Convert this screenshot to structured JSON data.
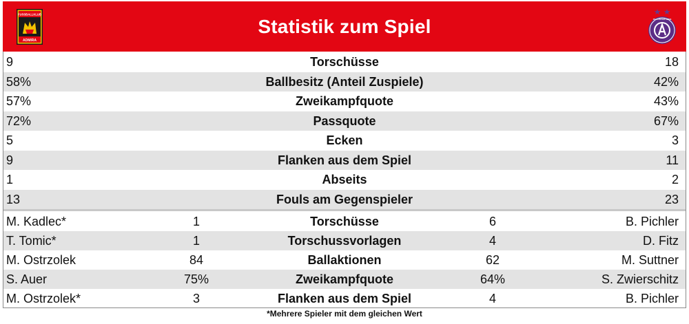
{
  "header": {
    "title": "Statistik zum Spiel",
    "home_logo": {
      "icon": "admira-crest-icon",
      "text_top": "FUSSBALLKLUB",
      "text_bottom": "ADMIRA"
    },
    "away_logo": {
      "icon": "austria-wien-crest-icon",
      "text": "FK AUSTRIA WIEN"
    },
    "accent_color": "#e30613"
  },
  "team_stats": [
    {
      "home": "9",
      "label": "Torschüsse",
      "away": "18"
    },
    {
      "home": "58%",
      "label": "Ballbesitz (Anteil Zuspiele)",
      "away": "42%"
    },
    {
      "home": "57%",
      "label": "Zweikampfquote",
      "away": "43%"
    },
    {
      "home": "72%",
      "label": "Passquote",
      "away": "67%"
    },
    {
      "home": "5",
      "label": "Ecken",
      "away": "3"
    },
    {
      "home": "9",
      "label": "Flanken aus dem Spiel",
      "away": "11"
    },
    {
      "home": "1",
      "label": "Abseits",
      "away": "2"
    },
    {
      "home": "13",
      "label": "Fouls am Gegenspieler",
      "away": "23"
    }
  ],
  "player_stats": [
    {
      "home_player": "M. Kadlec*",
      "home_value": "1",
      "label": "Torschüsse",
      "away_value": "6",
      "away_player": "B. Pichler"
    },
    {
      "home_player": "T. Tomic*",
      "home_value": "1",
      "label": "Torschussvorlagen",
      "away_value": "4",
      "away_player": "D. Fitz"
    },
    {
      "home_player": "M. Ostrzolek",
      "home_value": "84",
      "label": "Ballaktionen",
      "away_value": "62",
      "away_player": "M. Suttner"
    },
    {
      "home_player": "S. Auer",
      "home_value": "75%",
      "label": "Zweikampfquote",
      "away_value": "64%",
      "away_player": "S. Zwierschitz"
    },
    {
      "home_player": "M. Ostrzolek*",
      "home_value": "3",
      "label": "Flanken aus dem Spiel",
      "away_value": "4",
      "away_player": "B. Pichler"
    }
  ],
  "footnote": "*Mehrere Spieler mit dem gleichen Wert"
}
